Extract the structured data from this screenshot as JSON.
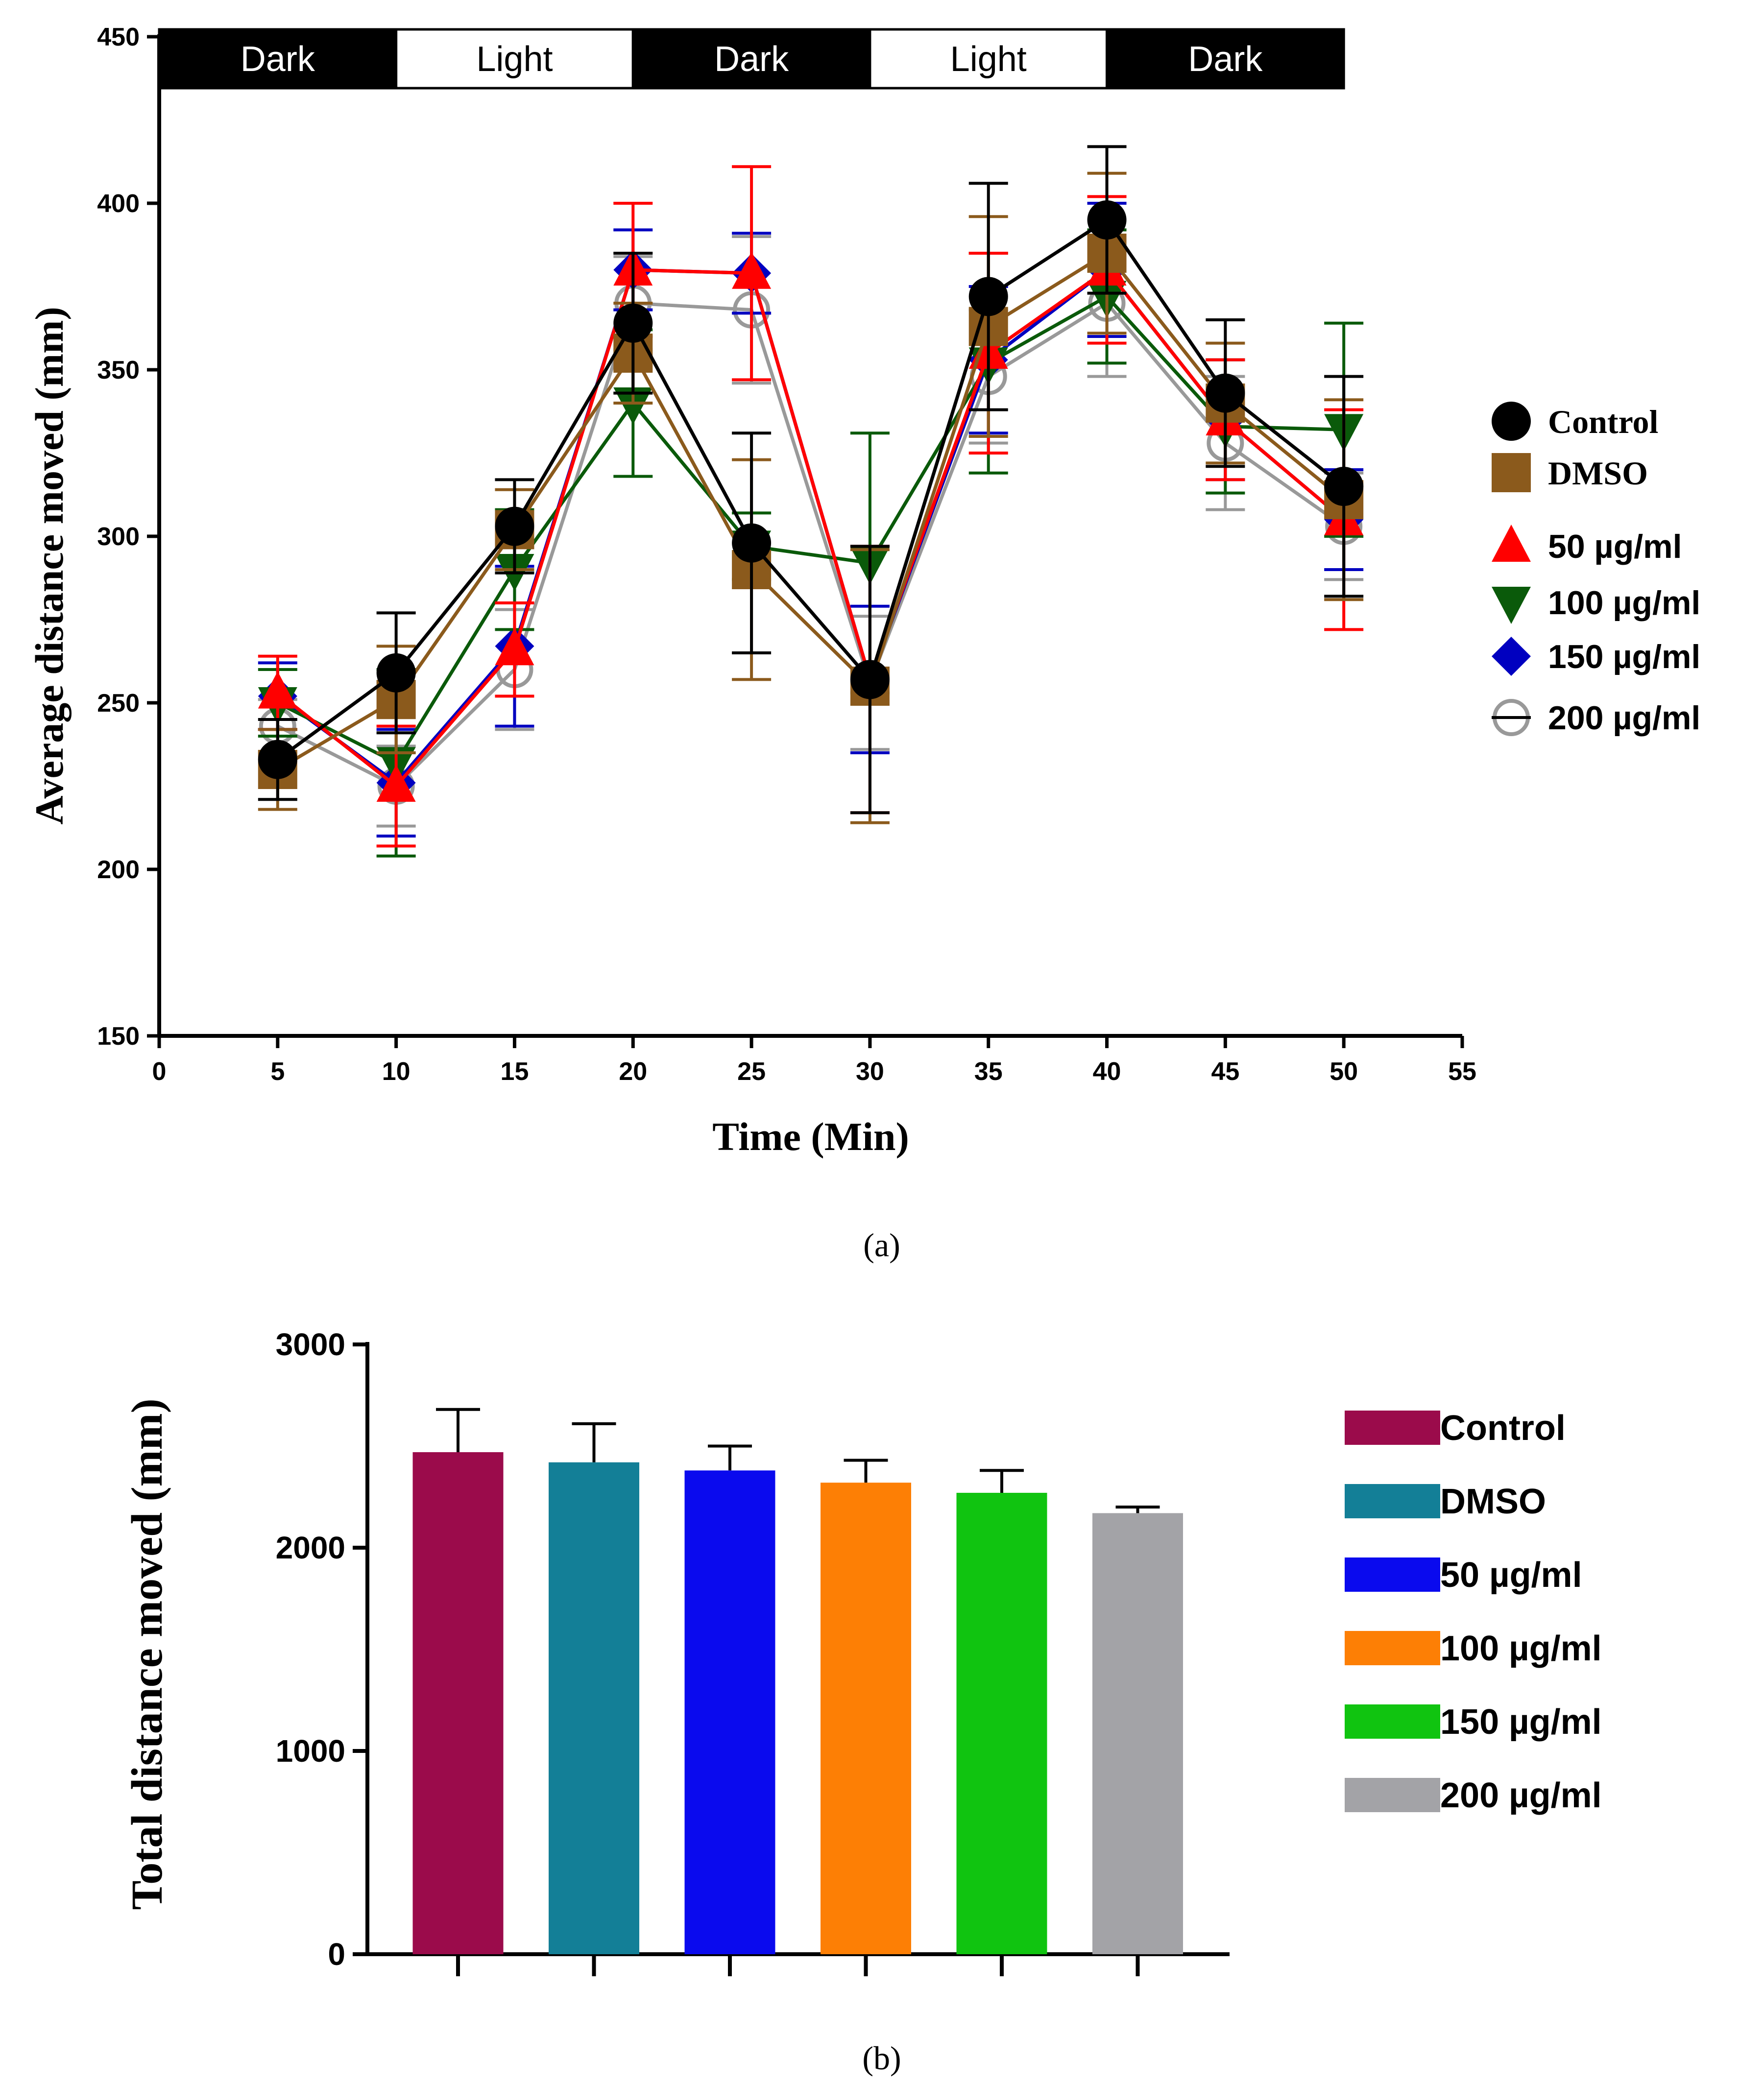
{
  "panel_a_caption": "(a)",
  "panel_b_caption": "(b)",
  "chart_data": [
    {
      "type": "line",
      "title": "",
      "xlabel": "Time (Min)",
      "ylabel": "Average distance moved (mm)",
      "xlim": [
        0,
        55
      ],
      "ylim": [
        150,
        450
      ],
      "x_ticks": [
        0,
        5,
        10,
        15,
        20,
        25,
        30,
        35,
        40,
        45,
        50,
        55
      ],
      "y_ticks": [
        150,
        200,
        250,
        300,
        350,
        400,
        450
      ],
      "phases": [
        {
          "label": "Dark",
          "start": 0,
          "end": 10,
          "fill": "#000000",
          "text_color": "#ffffff"
        },
        {
          "label": "Light",
          "start": 10,
          "end": 20,
          "fill": "#ffffff",
          "text_color": "#000000"
        },
        {
          "label": "Dark",
          "start": 20,
          "end": 30,
          "fill": "#000000",
          "text_color": "#ffffff"
        },
        {
          "label": "Light",
          "start": 30,
          "end": 40,
          "fill": "#ffffff",
          "text_color": "#000000"
        },
        {
          "label": "Dark",
          "start": 40,
          "end": 50,
          "fill": "#000000",
          "text_color": "#ffffff"
        }
      ],
      "x": [
        5,
        10,
        15,
        20,
        25,
        30,
        35,
        40,
        45,
        50
      ],
      "series": [
        {
          "name": "Control",
          "color": "#000000",
          "marker": "circle",
          "values": [
            233,
            259,
            303,
            364,
            298,
            257,
            372,
            395,
            343,
            315
          ],
          "errors": [
            12,
            18,
            14,
            21,
            33,
            40,
            34,
            22,
            22,
            33
          ]
        },
        {
          "name": "DMSO",
          "color": "#8b5a1c",
          "marker": "square",
          "values": [
            230,
            251,
            302,
            355,
            290,
            255,
            363,
            385,
            340,
            311
          ],
          "errors": [
            12,
            16,
            12,
            15,
            33,
            41,
            33,
            24,
            18,
            30
          ]
        },
        {
          "name": "50 µg/ml",
          "color": "#ff0000",
          "marker": "triangle-up",
          "values": [
            253,
            225,
            266,
            380,
            379,
            257,
            355,
            380,
            335,
            305
          ],
          "errors": [
            11,
            18,
            14,
            20,
            32,
            40,
            30,
            22,
            18,
            33
          ]
        },
        {
          "name": "100 µg/ml",
          "color": "#0a5a0a",
          "marker": "triangle-down",
          "values": [
            250,
            232,
            290,
            340,
            297,
            292,
            352,
            372,
            333,
            332
          ],
          "errors": [
            10,
            28,
            18,
            22,
            10,
            39,
            33,
            20,
            20,
            32
          ]
        },
        {
          "name": "150 µg/ml",
          "color": "#0000c0",
          "marker": "diamond",
          "values": [
            252,
            226,
            267,
            380,
            379,
            257,
            353,
            380,
            335,
            305
          ],
          "errors": [
            10,
            16,
            24,
            12,
            12,
            22,
            22,
            20,
            18,
            15
          ]
        },
        {
          "name": "200 µg/ml",
          "color": "#999999",
          "marker": "circle-open",
          "values": [
            243,
            225,
            260,
            370,
            368,
            256,
            348,
            370,
            328,
            303
          ],
          "errors": [
            8,
            12,
            18,
            14,
            22,
            20,
            20,
            22,
            20,
            16
          ]
        }
      ],
      "legend": "right"
    },
    {
      "type": "bar",
      "title": "",
      "xlabel": "",
      "ylabel": "Total distance moved (mm)",
      "ylim": [
        0,
        3000
      ],
      "y_ticks": [
        0,
        1000,
        2000,
        3000
      ],
      "categories": [
        "Control",
        "DMSO",
        "50 µg/ml",
        "100 µg/ml",
        "150 µg/ml",
        "200 µg/ml"
      ],
      "values": [
        2470,
        2420,
        2380,
        2320,
        2270,
        2170
      ],
      "errors": [
        210,
        190,
        120,
        110,
        110,
        30
      ],
      "colors": [
        "#9b0b4b",
        "#137f97",
        "#0a0aee",
        "#fd7f05",
        "#10c410",
        "#a3a3a7"
      ],
      "legend": "right"
    }
  ]
}
